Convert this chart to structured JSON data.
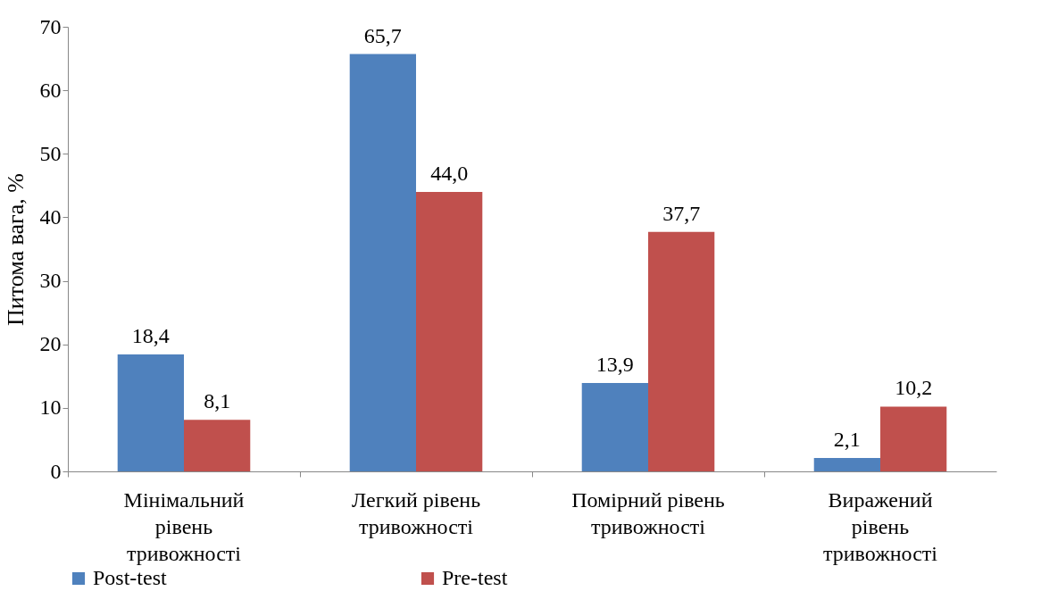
{
  "chart_data": {
    "type": "bar",
    "ylabel": "Питома вага, %",
    "categories": [
      "Мінімальний рівень тривожності",
      "Легкий рівень тривожності",
      "Помірний рівень тривожності",
      "Виражений рівень тривожності"
    ],
    "series": [
      {
        "name": "Post-test",
        "color": "#4f81bd",
        "values": [
          18.4,
          65.7,
          13.9,
          2.1
        ],
        "value_labels": [
          "18,4",
          "65,7",
          "13,9",
          "2,1"
        ]
      },
      {
        "name": "Pre-test",
        "color": "#c0504d",
        "values": [
          8.1,
          44.0,
          37.7,
          10.2
        ],
        "value_labels": [
          "8,1",
          "44,0",
          "37,7",
          "10,2"
        ]
      }
    ],
    "ylim": [
      0,
      70
    ],
    "yticks": [
      0,
      10,
      20,
      30,
      40,
      50,
      60,
      70
    ],
    "grid": false,
    "legend": "bottom"
  }
}
